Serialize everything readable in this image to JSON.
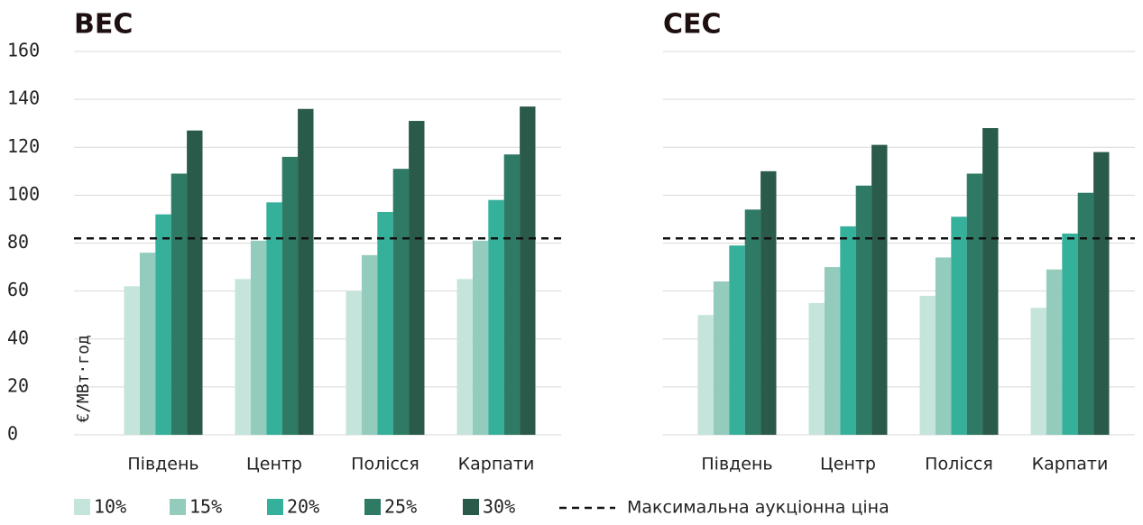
{
  "chart_data": [
    {
      "type": "bar",
      "title": "ВЕС",
      "ylabel": "€/МВт·год",
      "categories": [
        "Південь",
        "Центр",
        "Полісся",
        "Карпати"
      ],
      "series": [
        {
          "name": "10%",
          "color": "#c5e4dc",
          "values": [
            62,
            65,
            60,
            65
          ]
        },
        {
          "name": "15%",
          "color": "#93cbbd",
          "values": [
            76,
            81,
            75,
            81
          ]
        },
        {
          "name": "20%",
          "color": "#35b09a",
          "values": [
            92,
            97,
            93,
            98
          ]
        },
        {
          "name": "25%",
          "color": "#2e7a64",
          "values": [
            109,
            116,
            111,
            117
          ]
        },
        {
          "name": "30%",
          "color": "#2a5a4a",
          "values": [
            127,
            136,
            131,
            137
          ]
        }
      ],
      "reference_line": {
        "value": 82,
        "label": "Максимальна аукціонна ціна"
      },
      "ylim": [
        0,
        160
      ],
      "yticks": [
        0,
        20,
        40,
        60,
        80,
        100,
        120,
        140,
        160
      ],
      "grid": true
    },
    {
      "type": "bar",
      "title": "СЕС",
      "categories": [
        "Південь",
        "Центр",
        "Полісся",
        "Карпати"
      ],
      "series": [
        {
          "name": "10%",
          "color": "#c5e4dc",
          "values": [
            50,
            55,
            58,
            53
          ]
        },
        {
          "name": "15%",
          "color": "#93cbbd",
          "values": [
            64,
            70,
            74,
            69
          ]
        },
        {
          "name": "20%",
          "color": "#35b09a",
          "values": [
            79,
            87,
            91,
            84
          ]
        },
        {
          "name": "25%",
          "color": "#2e7a64",
          "values": [
            94,
            104,
            109,
            101
          ]
        },
        {
          "name": "30%",
          "color": "#2a5a4a",
          "values": [
            110,
            121,
            128,
            118
          ]
        }
      ],
      "reference_line": {
        "value": 82
      },
      "ylim": [
        0,
        160
      ],
      "yticks": [
        0,
        20,
        40,
        60,
        80,
        100,
        120,
        140,
        160
      ],
      "grid": true
    }
  ]
}
